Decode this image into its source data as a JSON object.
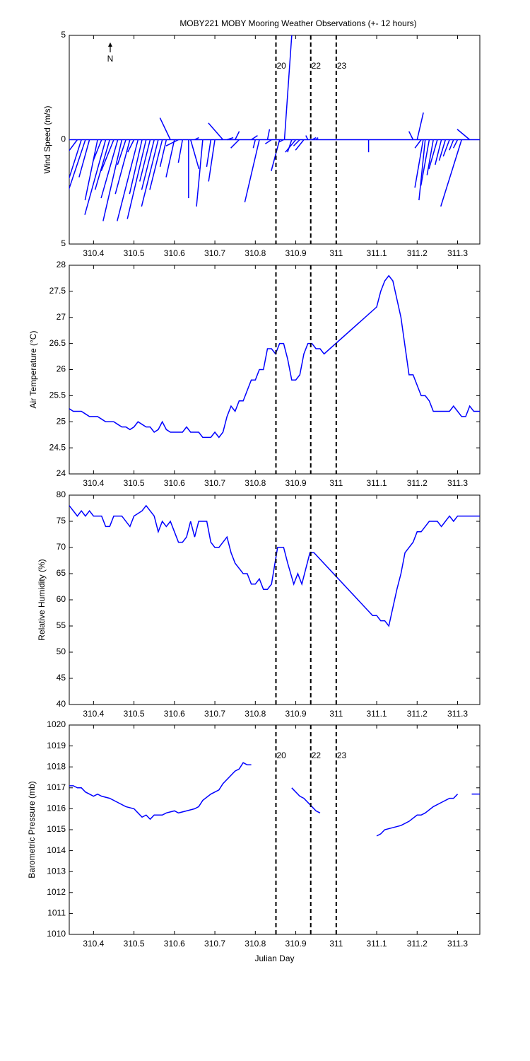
{
  "chart_data": [
    {
      "type": "vector",
      "title": "MOBY221 MOBY Mooring Weather Observations (+- 12 hours)",
      "ylabel": "Wind Speed (m/s)",
      "annotation": "N",
      "color": "#0000ff",
      "xlim": [
        310.34,
        311.355
      ],
      "xticks": [
        310.4,
        310.5,
        310.6,
        310.7,
        310.8,
        310.9,
        311,
        311.1,
        311.2,
        311.3
      ],
      "ylim": [
        -5,
        5
      ],
      "yticks": [
        {
          "value": -5,
          "label": "5"
        },
        0,
        5
      ],
      "vlines": [
        310.851,
        310.937,
        311.0
      ],
      "vline_labels": [
        "20",
        "22",
        "23"
      ],
      "vline_color": "#cc0000",
      "x": [
        310.36,
        310.37,
        310.38,
        310.39,
        310.41,
        310.42,
        310.43,
        310.44,
        310.45,
        310.46,
        310.47,
        310.48,
        310.49,
        310.5,
        310.51,
        310.52,
        310.53,
        310.54,
        310.55,
        310.56,
        310.57,
        310.58,
        310.59,
        310.6,
        310.61,
        310.62,
        310.635,
        310.64,
        310.65,
        310.67,
        310.69,
        310.7,
        310.72,
        310.73,
        310.75,
        310.76,
        310.79,
        310.8,
        310.81,
        310.83,
        310.84,
        310.86,
        310.87,
        310.872,
        310.89,
        310.9,
        310.91,
        310.92,
        310.93,
        310.94,
        310.95,
        311.08,
        311.19,
        311.2,
        311.21,
        311.215,
        311.22,
        311.23,
        311.24,
        311.25,
        311.26,
        311.27,
        311.28,
        311.29,
        311.3,
        311.31,
        311.33
      ],
      "u": [
        -0.6,
        -0.8,
        -1.0,
        -0.5,
        -0.6,
        -0.4,
        -1.0,
        -0.7,
        -0.6,
        -0.8,
        -0.9,
        -0.4,
        -0.7,
        -0.3,
        -1.0,
        -0.6,
        -0.9,
        -0.5,
        -0.6,
        -0.8,
        -0.6,
        -0.3,
        -0.5,
        -0.4,
        -0.6,
        -0.2,
        0.0,
        0.4,
        0.2,
        -0.3,
        -0.2,
        -0.3,
        -0.7,
        0.3,
        0.2,
        -0.4,
        0.3,
        -0.1,
        -0.7,
        0.1,
        -0.3,
        -0.4,
        -0.2,
        0.35,
        -0.2,
        -0.5,
        -0.3,
        -0.4,
        -0.1,
        0.2,
        0.1,
        0.0,
        -0.2,
        0.3,
        -0.3,
        -0.4,
        -0.3,
        -0.4,
        -0.3,
        -0.4,
        -0.3,
        -0.3,
        -0.3,
        -0.2,
        -0.2,
        -1.0,
        -0.6
      ],
      "v": [
        -0.8,
        -2.5,
        -3.0,
        -1.8,
        -2.9,
        -1.0,
        -3.6,
        -2.4,
        -1.5,
        -2.8,
        -3.9,
        -1.2,
        -2.6,
        -0.6,
        -3.9,
        -2.6,
        -3.8,
        -2.0,
        -2.4,
        -3.2,
        -2.4,
        -1.3,
        1.05,
        -1.8,
        -0.3,
        -1.1,
        -2.8,
        -1.4,
        0.1,
        -3.2,
        -1.3,
        -2.0,
        0.8,
        0.1,
        0.4,
        -0.4,
        0.2,
        -0.4,
        -3.0,
        0.5,
        -0.2,
        -1.5,
        -0.1,
        5.0,
        -0.6,
        -0.6,
        -0.3,
        -0.5,
        0.2,
        0.1,
        0.1,
        -0.6,
        0.4,
        1.3,
        -0.4,
        -2.3,
        -2.9,
        -2.2,
        -1.7,
        -1.4,
        -1.2,
        -1.0,
        -0.8,
        -0.5,
        -0.4,
        -3.2,
        0.5
      ]
    },
    {
      "type": "line",
      "ylabel": "Air Temperature (°C)",
      "color": "#0000ff",
      "xlim": [
        310.34,
        311.355
      ],
      "xticks": [
        310.4,
        310.5,
        310.6,
        310.7,
        310.8,
        310.9,
        311,
        311.1,
        311.2,
        311.3
      ],
      "ylim": [
        24,
        28
      ],
      "yticks": [
        24,
        24.5,
        25,
        25.5,
        26,
        26.5,
        27,
        27.5,
        28
      ],
      "vlines": [
        310.851,
        310.937,
        311.0
      ],
      "x": [
        310.34,
        310.35,
        310.37,
        310.38,
        310.39,
        310.41,
        310.42,
        310.43,
        310.45,
        310.46,
        310.47,
        310.48,
        310.49,
        310.5,
        310.51,
        310.52,
        310.53,
        310.54,
        310.55,
        310.56,
        310.57,
        310.58,
        310.59,
        310.6,
        310.62,
        310.63,
        310.64,
        310.66,
        310.67,
        310.69,
        310.7,
        310.71,
        310.72,
        310.73,
        310.74,
        310.75,
        310.76,
        310.77,
        310.78,
        310.79,
        310.8,
        310.81,
        310.82,
        310.83,
        310.84,
        310.85,
        310.86,
        310.87,
        310.88,
        310.89,
        310.9,
        310.91,
        310.92,
        310.93,
        310.94,
        310.95,
        310.96,
        310.97,
        311.1,
        311.11,
        311.12,
        311.13,
        311.14,
        311.16,
        311.18,
        311.19,
        311.2,
        311.21,
        311.22,
        311.23,
        311.24,
        311.26,
        311.28,
        311.29,
        311.31,
        311.32,
        311.33,
        311.34,
        311.355
      ],
      "values": [
        25.25,
        25.2,
        25.2,
        25.15,
        25.1,
        25.1,
        25.05,
        25.0,
        25.0,
        24.95,
        24.9,
        24.9,
        24.85,
        24.9,
        25.0,
        24.95,
        24.9,
        24.9,
        24.8,
        24.85,
        25.0,
        24.85,
        24.8,
        24.8,
        24.8,
        24.9,
        24.8,
        24.8,
        24.7,
        24.7,
        24.8,
        24.7,
        24.8,
        25.1,
        25.3,
        25.2,
        25.4,
        25.4,
        25.6,
        25.8,
        25.8,
        26.0,
        26.0,
        26.4,
        26.4,
        26.3,
        26.5,
        26.5,
        26.2,
        25.8,
        25.8,
        25.9,
        26.3,
        26.5,
        26.5,
        26.4,
        26.4,
        26.3,
        27.2,
        27.5,
        27.7,
        27.8,
        27.7,
        27.0,
        25.9,
        25.9,
        25.7,
        25.5,
        25.5,
        25.4,
        25.2,
        25.2,
        25.2,
        25.3,
        25.1,
        25.1,
        25.3,
        25.2,
        25.2
      ]
    },
    {
      "type": "line",
      "ylabel": "Relative Humidity (%)",
      "color": "#0000ff",
      "xlim": [
        310.34,
        311.355
      ],
      "xticks": [
        310.4,
        310.5,
        310.6,
        310.7,
        310.8,
        310.9,
        311,
        311.1,
        311.2,
        311.3
      ],
      "ylim": [
        40,
        80
      ],
      "yticks": [
        40,
        45,
        50,
        55,
        60,
        65,
        70,
        75,
        80
      ],
      "vlines": [
        310.851,
        310.937,
        311.0
      ],
      "x": [
        310.34,
        310.36,
        310.37,
        310.38,
        310.39,
        310.4,
        310.42,
        310.43,
        310.44,
        310.45,
        310.47,
        310.49,
        310.5,
        310.52,
        310.53,
        310.54,
        310.55,
        310.56,
        310.57,
        310.58,
        310.59,
        310.6,
        310.61,
        310.62,
        310.63,
        310.64,
        310.65,
        310.66,
        310.68,
        310.69,
        310.7,
        310.71,
        310.72,
        310.73,
        310.74,
        310.75,
        310.76,
        310.77,
        310.78,
        310.79,
        310.8,
        310.81,
        310.82,
        310.83,
        310.84,
        310.855,
        310.87,
        310.88,
        310.895,
        310.905,
        310.915,
        310.925,
        310.935,
        310.945,
        311.09,
        311.1,
        311.11,
        311.12,
        311.13,
        311.15,
        311.16,
        311.17,
        311.19,
        311.2,
        311.21,
        311.23,
        311.25,
        311.26,
        311.27,
        311.28,
        311.29,
        311.3,
        311.355
      ],
      "values": [
        78,
        76,
        77,
        76,
        77,
        76,
        76,
        74,
        74,
        76,
        76,
        74,
        76,
        77,
        78,
        77,
        76,
        73,
        75,
        74,
        75,
        73,
        71,
        71,
        72,
        75,
        72,
        75,
        75,
        71,
        70,
        70,
        71,
        72,
        69,
        67,
        66,
        65,
        65,
        63,
        63,
        64,
        62,
        62,
        63,
        70,
        70,
        67,
        63,
        65,
        63,
        66,
        69,
        69,
        57,
        57,
        56,
        56,
        55,
        62,
        65,
        69,
        71,
        73,
        73,
        75,
        75,
        74,
        75,
        76,
        75,
        76,
        76
      ]
    },
    {
      "type": "line",
      "ylabel": "Barometric Pressure (mb)",
      "xlabel": "Julian Day",
      "color": "#0000ff",
      "xlim": [
        310.34,
        311.355
      ],
      "xticks": [
        310.4,
        310.5,
        310.6,
        310.7,
        310.8,
        310.9,
        311,
        311.1,
        311.2,
        311.3
      ],
      "ylim": [
        1010,
        1020
      ],
      "yticks": [
        1010,
        1011,
        1012,
        1013,
        1014,
        1015,
        1016,
        1017,
        1018,
        1019,
        1020
      ],
      "vlines": [
        310.851,
        310.937,
        311.0
      ],
      "vline_labels": [
        "20",
        "22",
        "23"
      ],
      "vline_color": "#cc0000",
      "x": [
        310.34,
        310.35,
        310.36,
        310.37,
        310.38,
        310.4,
        310.41,
        310.42,
        310.44,
        310.46,
        310.48,
        310.5,
        310.51,
        310.52,
        310.53,
        310.54,
        310.55,
        310.57,
        310.58,
        310.6,
        310.61,
        310.63,
        310.65,
        310.66,
        310.67,
        310.69,
        310.71,
        310.72,
        310.74,
        310.75,
        310.76,
        310.77,
        310.78,
        310.79,
        310.84,
        310.89,
        310.91,
        310.92,
        310.94,
        310.95,
        310.96,
        311.03,
        311.1,
        311.11,
        311.12,
        311.14,
        311.16,
        311.18,
        311.2,
        311.21,
        311.22,
        311.24,
        311.26,
        311.28,
        311.29,
        311.3,
        311.32,
        311.335,
        311.355
      ],
      "values": [
        1017.1,
        1017.1,
        1017.0,
        1017.0,
        1016.8,
        1016.6,
        1016.7,
        1016.6,
        1016.5,
        1016.3,
        1016.1,
        1016.0,
        1015.8,
        1015.6,
        1015.7,
        1015.5,
        1015.7,
        1015.7,
        1015.8,
        1015.9,
        1015.8,
        1015.9,
        1016.0,
        1016.1,
        1016.4,
        1016.7,
        1016.9,
        1017.2,
        1017.6,
        1017.8,
        1017.9,
        1018.2,
        1018.1,
        1018.1,
        null,
        1017.0,
        1016.6,
        1016.5,
        1016.1,
        1015.9,
        1015.8,
        null,
        1014.7,
        1014.8,
        1015.0,
        1015.1,
        1015.2,
        1015.4,
        1015.7,
        1015.7,
        1015.8,
        1016.1,
        1016.3,
        1016.5,
        1016.5,
        1016.7,
        null,
        1016.7,
        1016.7
      ]
    }
  ]
}
